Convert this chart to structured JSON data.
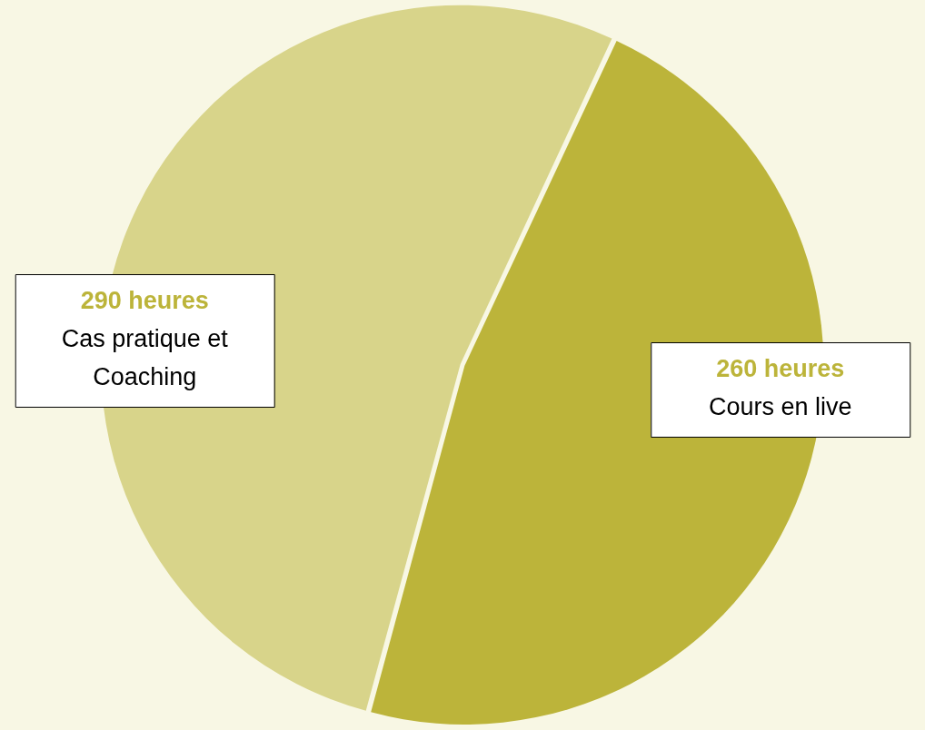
{
  "chart_data": {
    "type": "pie",
    "categories": [
      "Cours en live",
      "Cas pratique et Coaching"
    ],
    "values": [
      260,
      290
    ],
    "colors": [
      "#bcb43a",
      "#d8d48a"
    ],
    "value_labels": [
      "260 heures",
      "290 heures"
    ],
    "legend": false
  }
}
